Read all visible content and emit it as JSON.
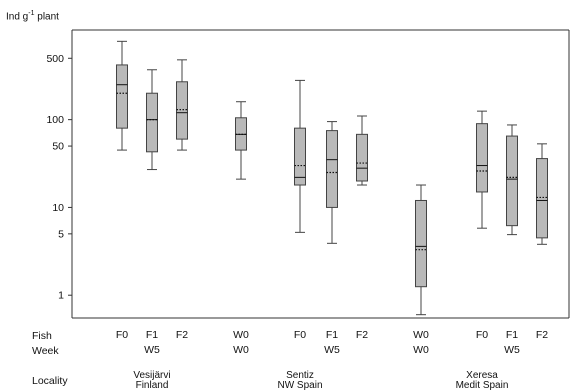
{
  "chart_data": {
    "type": "box",
    "y_label_main": "Ind g",
    "y_label_exp": "-1",
    "y_label_rest": " plant",
    "y_scale": "log",
    "ylim": [
      0.55,
      1050
    ],
    "y_ticks": [
      1,
      5,
      10,
      50,
      100,
      500
    ],
    "y_tick_labels": [
      "1",
      "5",
      "10",
      "50",
      "100",
      "500"
    ],
    "grid": false,
    "row_labels": {
      "fish": "Fish",
      "week": "Week",
      "locality": "Locality"
    },
    "groups": [
      {
        "fish": "F0",
        "whisker_low": 45,
        "q1": 80,
        "median": 250,
        "mean": 200,
        "q3": 420,
        "whisker_high": 780
      },
      {
        "fish": "F1",
        "whisker_low": 27,
        "q1": 43,
        "median": 100,
        "mean": 100,
        "q3": 200,
        "whisker_high": 370
      },
      {
        "fish": "F2",
        "whisker_low": 45,
        "q1": 60,
        "median": 120,
        "mean": 130,
        "q3": 270,
        "whisker_high": 480
      },
      {
        "fish": "W0",
        "whisker_low": 21,
        "q1": 45,
        "median": 68,
        "mean": 68,
        "q3": 105,
        "whisker_high": 160
      },
      {
        "fish": "F0",
        "whisker_low": 5.2,
        "q1": 18,
        "median": 22,
        "mean": 30,
        "q3": 80,
        "whisker_high": 280
      },
      {
        "fish": "F1",
        "whisker_low": 3.9,
        "q1": 10,
        "median": 35,
        "mean": 25,
        "q3": 75,
        "whisker_high": 95
      },
      {
        "fish": "F2",
        "whisker_low": 18,
        "q1": 20,
        "median": 28,
        "mean": 32,
        "q3": 68,
        "whisker_high": 110
      },
      {
        "fish": "W0",
        "whisker_low": 0.6,
        "q1": 1.25,
        "median": 3.6,
        "mean": 3.3,
        "q3": 12,
        "whisker_high": 18
      },
      {
        "fish": "F0",
        "whisker_low": 5.8,
        "q1": 15,
        "median": 30,
        "mean": 26,
        "q3": 90,
        "whisker_high": 125
      },
      {
        "fish": "F1",
        "whisker_low": 4.9,
        "q1": 6.2,
        "median": 21,
        "mean": 22,
        "q3": 65,
        "whisker_high": 87
      },
      {
        "fish": "F2",
        "whisker_low": 3.8,
        "q1": 4.5,
        "median": 12,
        "mean": 13,
        "q3": 36,
        "whisker_high": 53
      }
    ],
    "weeks": [
      "W5",
      "W0",
      "W5",
      "W0",
      "W5"
    ],
    "localities": [
      {
        "line1": "Vesijärvi",
        "line2": "Finland"
      },
      {
        "line1": "Sentiz",
        "line2": "NW Spain"
      },
      {
        "line1": "Xeresa",
        "line2": "Medit Spain"
      }
    ]
  }
}
